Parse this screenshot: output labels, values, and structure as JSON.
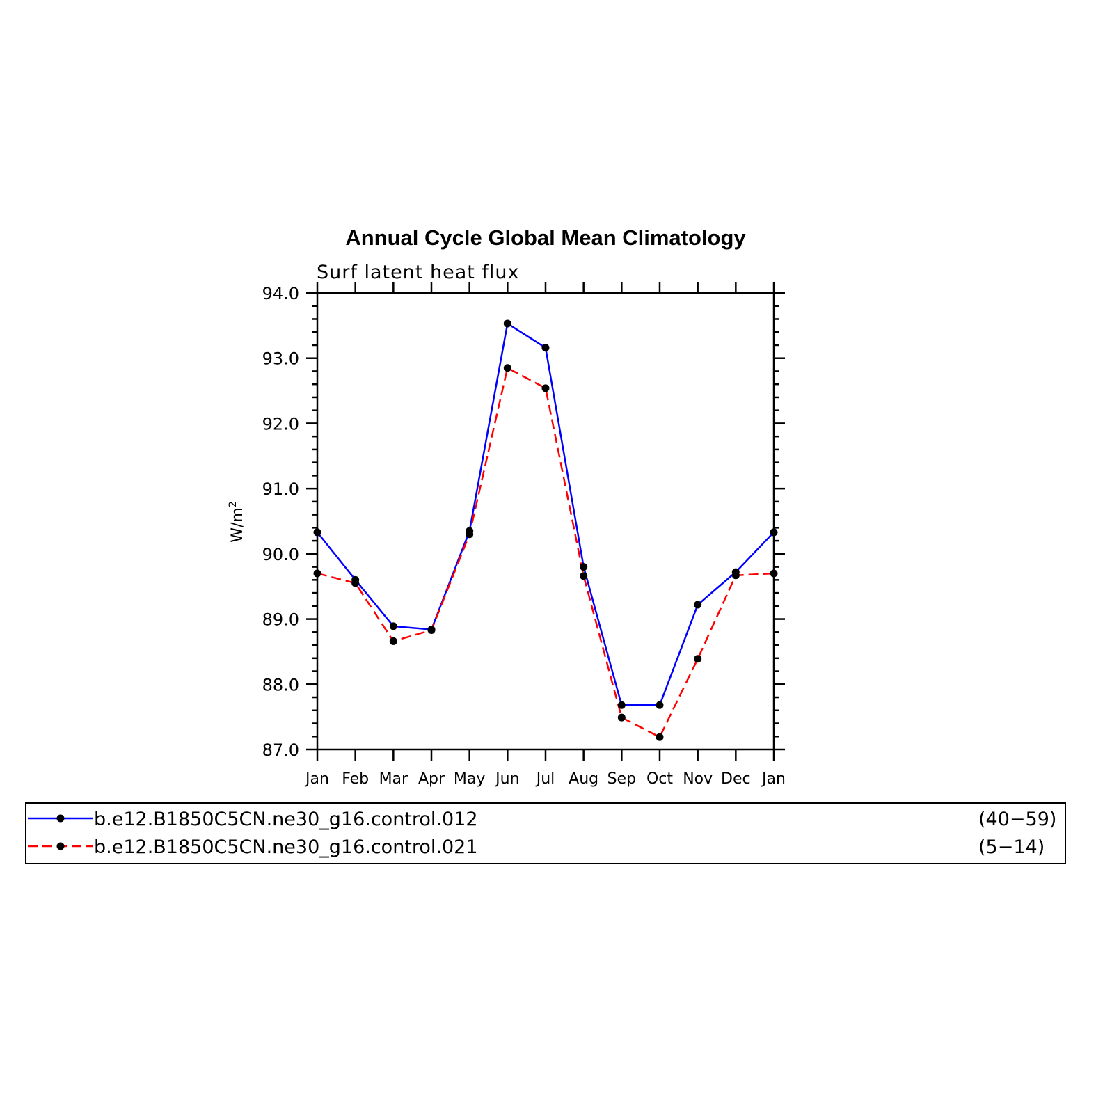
{
  "chart_data": {
    "type": "line",
    "title": "Annual Cycle Global Mean Climatology",
    "subtitle": "Surf latent heat flux",
    "ylabel": "W/m",
    "ylabel_sup": "2",
    "xlabel": "",
    "categories": [
      "Jan",
      "Feb",
      "Mar",
      "Apr",
      "May",
      "Jun",
      "Jul",
      "Aug",
      "Sep",
      "Oct",
      "Nov",
      "Dec",
      "Jan"
    ],
    "ylim": [
      87.0,
      94.0
    ],
    "yticks": [
      87.0,
      88.0,
      89.0,
      90.0,
      91.0,
      92.0,
      93.0,
      94.0
    ],
    "ytick_labels": [
      "87.0",
      "88.0",
      "89.0",
      "90.0",
      "91.0",
      "92.0",
      "93.0",
      "94.0"
    ],
    "grid": false,
    "legend_position": "bottom",
    "series": [
      {
        "name": "b.e12.B1850C5CN.ne30_g16.control.012",
        "years": "(40−59)",
        "color": "#0000ff",
        "dash": "solid",
        "values": [
          90.33,
          89.6,
          88.89,
          88.84,
          90.35,
          93.53,
          93.16,
          89.8,
          87.68,
          87.68,
          89.22,
          89.72,
          90.33
        ]
      },
      {
        "name": "b.e12.B1850C5CN.ne30_g16.control.021",
        "years": "(5−14)",
        "color": "#ff0000",
        "dash": "dashed",
        "values": [
          89.7,
          89.55,
          88.66,
          88.83,
          90.3,
          92.85,
          92.54,
          89.66,
          87.49,
          87.19,
          88.39,
          89.67,
          89.7
        ]
      }
    ]
  }
}
